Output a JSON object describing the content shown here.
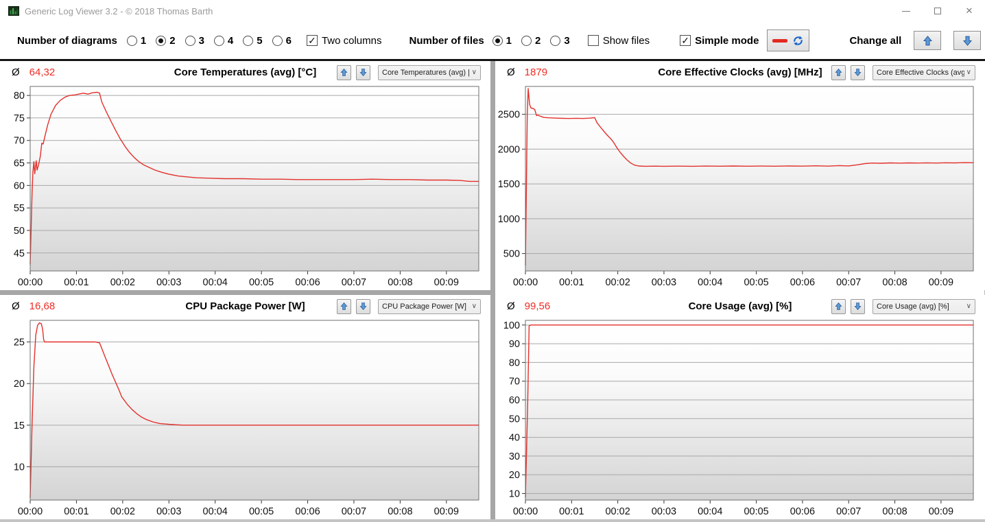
{
  "window": {
    "title": "Generic Log Viewer 3.2 - © 2018 Thomas Barth",
    "close_glyph": "✕"
  },
  "toolbar": {
    "diagrams_label": "Number of diagrams",
    "diagrams": {
      "options": [
        "1",
        "2",
        "3",
        "4",
        "5",
        "6"
      ],
      "selected": "2"
    },
    "two_columns": {
      "label": "Two columns",
      "checked": true
    },
    "files_label": "Number of files",
    "files": {
      "options": [
        "1",
        "2",
        "3"
      ],
      "selected": "1"
    },
    "show_files": {
      "label": "Show files",
      "checked": false
    },
    "simple_mode": {
      "label": "Simple mode",
      "checked": true
    },
    "change_all_label": "Change all"
  },
  "colors": {
    "series_red": "#e3302b",
    "avg_red": "#f02b23",
    "arrow_blue": "#4e8fd0",
    "grid_gray": "#a8a8a8"
  },
  "panels": [
    {
      "avg_symbol": "Ø",
      "avg": "64,32",
      "title": "Core Temperatures (avg) [°C]",
      "dropdown": "Core Temperatures (avg) |",
      "chevron": "∨"
    },
    {
      "avg_symbol": "Ø",
      "avg": "1879",
      "title": "Core Effective Clocks (avg) [MHz]",
      "dropdown": "Core Effective Clocks (avg",
      "chevron": "∨"
    },
    {
      "avg_symbol": "Ø",
      "avg": "16,68",
      "title": "CPU Package Power [W]",
      "dropdown": "CPU Package Power [W]",
      "chevron": "∨"
    },
    {
      "avg_symbol": "Ø",
      "avg": "99,56",
      "title": "Core Usage (avg) [%]",
      "dropdown": "Core Usage (avg) [%]",
      "chevron": "∨"
    }
  ],
  "chart_data": [
    {
      "type": "line",
      "title": "Core Temperatures (avg) [°C]",
      "average": 64.32,
      "xlim": [
        0,
        9.7
      ],
      "ylim": [
        41,
        82
      ],
      "yticks": [
        45,
        50,
        55,
        60,
        65,
        70,
        75,
        80
      ],
      "xticks": [
        0,
        1,
        2,
        3,
        4,
        5,
        6,
        7,
        8,
        9
      ],
      "xtick_labels": [
        "00:00",
        "00:01",
        "00:02",
        "00:03",
        "00:04",
        "00:05",
        "00:06",
        "00:07",
        "00:08",
        "00:09"
      ],
      "grid": true,
      "points": [
        [
          0,
          42.5
        ],
        [
          0.02,
          50
        ],
        [
          0.04,
          58
        ],
        [
          0.06,
          63
        ],
        [
          0.08,
          65.3
        ],
        [
          0.1,
          62.6
        ],
        [
          0.13,
          65.5
        ],
        [
          0.15,
          63.4
        ],
        [
          0.18,
          64.5
        ],
        [
          0.22,
          66.5
        ],
        [
          0.25,
          69.4
        ],
        [
          0.28,
          69.2
        ],
        [
          0.32,
          71
        ],
        [
          0.38,
          73.5
        ],
        [
          0.45,
          75.8
        ],
        [
          0.55,
          77.8
        ],
        [
          0.65,
          78.9
        ],
        [
          0.75,
          79.6
        ],
        [
          0.85,
          80
        ],
        [
          0.95,
          80.1
        ],
        [
          1.05,
          80.3
        ],
        [
          1.15,
          80.5
        ],
        [
          1.25,
          80.3
        ],
        [
          1.35,
          80.6
        ],
        [
          1.45,
          80.7
        ],
        [
          1.5,
          80.5
        ],
        [
          1.55,
          78.5
        ],
        [
          1.65,
          76.3
        ],
        [
          1.75,
          74.2
        ],
        [
          1.85,
          72.2
        ],
        [
          1.95,
          70.3
        ],
        [
          2.05,
          68.7
        ],
        [
          2.15,
          67.3
        ],
        [
          2.25,
          66.2
        ],
        [
          2.35,
          65.3
        ],
        [
          2.45,
          64.6
        ],
        [
          2.55,
          64.1
        ],
        [
          2.7,
          63.4
        ],
        [
          2.85,
          62.9
        ],
        [
          3,
          62.5
        ],
        [
          3.2,
          62.1
        ],
        [
          3.4,
          61.9
        ],
        [
          3.6,
          61.7
        ],
        [
          3.9,
          61.6
        ],
        [
          4.2,
          61.5
        ],
        [
          4.6,
          61.5
        ],
        [
          5,
          61.4
        ],
        [
          5.4,
          61.4
        ],
        [
          5.8,
          61.3
        ],
        [
          6.2,
          61.3
        ],
        [
          6.6,
          61.3
        ],
        [
          7,
          61.3
        ],
        [
          7.4,
          61.4
        ],
        [
          7.8,
          61.3
        ],
        [
          8.2,
          61.3
        ],
        [
          8.6,
          61.2
        ],
        [
          9,
          61.2
        ],
        [
          9.3,
          61.1
        ],
        [
          9.5,
          60.9
        ],
        [
          9.7,
          60.9
        ]
      ]
    },
    {
      "type": "line",
      "title": "Core Effective Clocks (avg) [MHz]",
      "average": 1879,
      "xlim": [
        0,
        9.7
      ],
      "ylim": [
        250,
        2900
      ],
      "yticks": [
        500,
        1000,
        1500,
        2000,
        2500
      ],
      "xticks": [
        0,
        1,
        2,
        3,
        4,
        5,
        6,
        7,
        8,
        9
      ],
      "xtick_labels": [
        "00:00",
        "00:01",
        "00:02",
        "00:03",
        "00:04",
        "00:05",
        "00:06",
        "00:07",
        "00:08",
        "00:09"
      ],
      "grid": true,
      "points": [
        [
          0,
          330
        ],
        [
          0.04,
          2500
        ],
        [
          0.06,
          2870
        ],
        [
          0.09,
          2640
        ],
        [
          0.12,
          2590
        ],
        [
          0.16,
          2585
        ],
        [
          0.2,
          2570
        ],
        [
          0.24,
          2480
        ],
        [
          0.28,
          2485
        ],
        [
          0.33,
          2470
        ],
        [
          0.4,
          2455
        ],
        [
          0.5,
          2450
        ],
        [
          0.65,
          2445
        ],
        [
          0.8,
          2442
        ],
        [
          0.95,
          2440
        ],
        [
          1.1,
          2443
        ],
        [
          1.25,
          2440
        ],
        [
          1.4,
          2445
        ],
        [
          1.5,
          2452
        ],
        [
          1.55,
          2380
        ],
        [
          1.62,
          2320
        ],
        [
          1.7,
          2255
        ],
        [
          1.78,
          2195
        ],
        [
          1.86,
          2140
        ],
        [
          1.92,
          2085
        ],
        [
          1.98,
          2020
        ],
        [
          2.05,
          1955
        ],
        [
          2.12,
          1900
        ],
        [
          2.2,
          1845
        ],
        [
          2.28,
          1800
        ],
        [
          2.36,
          1770
        ],
        [
          2.45,
          1757
        ],
        [
          2.6,
          1753
        ],
        [
          2.8,
          1755
        ],
        [
          3,
          1753
        ],
        [
          3.3,
          1755
        ],
        [
          3.6,
          1753
        ],
        [
          3.9,
          1756
        ],
        [
          4.2,
          1754
        ],
        [
          4.5,
          1757
        ],
        [
          4.8,
          1754
        ],
        [
          5.1,
          1756
        ],
        [
          5.4,
          1754
        ],
        [
          5.7,
          1757
        ],
        [
          6,
          1755
        ],
        [
          6.3,
          1760
        ],
        [
          6.55,
          1755
        ],
        [
          6.8,
          1763
        ],
        [
          7,
          1758
        ],
        [
          7.2,
          1775
        ],
        [
          7.35,
          1792
        ],
        [
          7.5,
          1800
        ],
        [
          7.7,
          1797
        ],
        [
          7.9,
          1802
        ],
        [
          8.1,
          1799
        ],
        [
          8.3,
          1802
        ],
        [
          8.5,
          1800
        ],
        [
          8.7,
          1803
        ],
        [
          8.9,
          1800
        ],
        [
          9.1,
          1804
        ],
        [
          9.3,
          1802
        ],
        [
          9.5,
          1806
        ],
        [
          9.7,
          1805
        ]
      ]
    },
    {
      "type": "line",
      "title": "CPU Package Power [W]",
      "average": 16.68,
      "xlim": [
        0,
        9.7
      ],
      "ylim": [
        6,
        27.6
      ],
      "yticks": [
        10,
        15,
        20,
        25
      ],
      "xticks": [
        0,
        1,
        2,
        3,
        4,
        5,
        6,
        7,
        8,
        9
      ],
      "xtick_labels": [
        "00:00",
        "00:01",
        "00:02",
        "00:03",
        "00:04",
        "00:05",
        "00:06",
        "00:07",
        "00:08",
        "00:09"
      ],
      "grid": true,
      "points": [
        [
          0,
          6.3
        ],
        [
          0.04,
          15
        ],
        [
          0.08,
          22
        ],
        [
          0.12,
          25.8
        ],
        [
          0.16,
          27
        ],
        [
          0.2,
          27.3
        ],
        [
          0.24,
          27.2
        ],
        [
          0.27,
          26.5
        ],
        [
          0.29,
          25.3
        ],
        [
          0.31,
          25
        ],
        [
          0.5,
          25
        ],
        [
          0.8,
          25
        ],
        [
          1.1,
          25
        ],
        [
          1.4,
          25
        ],
        [
          1.5,
          24.9
        ],
        [
          1.55,
          24.2
        ],
        [
          1.62,
          23.2
        ],
        [
          1.7,
          22.1
        ],
        [
          1.78,
          21
        ],
        [
          1.86,
          20
        ],
        [
          1.93,
          19.1
        ],
        [
          1.98,
          18.4
        ],
        [
          2.02,
          18.1
        ],
        [
          2.1,
          17.5
        ],
        [
          2.2,
          16.9
        ],
        [
          2.3,
          16.4
        ],
        [
          2.4,
          16
        ],
        [
          2.5,
          15.7
        ],
        [
          2.65,
          15.4
        ],
        [
          2.8,
          15.2
        ],
        [
          3,
          15.1
        ],
        [
          3.3,
          15
        ],
        [
          3.7,
          15
        ],
        [
          4.1,
          15
        ],
        [
          4.5,
          15
        ],
        [
          5,
          15
        ],
        [
          5.5,
          15
        ],
        [
          6,
          15
        ],
        [
          6.5,
          15
        ],
        [
          7,
          15
        ],
        [
          7.5,
          15
        ],
        [
          8,
          15
        ],
        [
          8.5,
          15
        ],
        [
          9,
          15
        ],
        [
          9.4,
          15
        ],
        [
          9.7,
          15
        ]
      ]
    },
    {
      "type": "line",
      "title": "Core Usage (avg) [%]",
      "average": 99.56,
      "xlim": [
        0,
        9.7
      ],
      "ylim": [
        6.5,
        102.5
      ],
      "yticks": [
        10,
        20,
        30,
        40,
        50,
        60,
        70,
        80,
        90,
        100
      ],
      "xticks": [
        0,
        1,
        2,
        3,
        4,
        5,
        6,
        7,
        8,
        9
      ],
      "xtick_labels": [
        "00:00",
        "00:01",
        "00:02",
        "00:03",
        "00:04",
        "00:05",
        "00:06",
        "00:07",
        "00:08",
        "00:09"
      ],
      "grid": true,
      "points": [
        [
          0,
          8
        ],
        [
          0.05,
          60
        ],
        [
          0.08,
          99.6
        ],
        [
          0.12,
          100
        ],
        [
          0.5,
          100
        ],
        [
          1,
          100
        ],
        [
          1.5,
          100
        ],
        [
          2,
          100
        ],
        [
          2.5,
          100
        ],
        [
          3,
          100
        ],
        [
          3.5,
          100
        ],
        [
          4,
          100
        ],
        [
          4.5,
          100
        ],
        [
          5,
          100
        ],
        [
          5.5,
          100
        ],
        [
          6,
          100
        ],
        [
          6.5,
          100
        ],
        [
          7,
          100
        ],
        [
          7.5,
          100
        ],
        [
          8,
          100
        ],
        [
          8.5,
          100
        ],
        [
          9,
          100
        ],
        [
          9.35,
          100
        ],
        [
          9.7,
          100
        ]
      ]
    }
  ]
}
